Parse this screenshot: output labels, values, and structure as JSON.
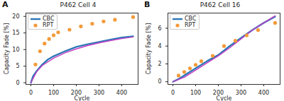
{
  "chart_data": [
    {
      "type": "line",
      "annotation": "A",
      "title": "P462 Cell 4",
      "x_label": "Cycle",
      "y_label": "Capacity Fade [%]",
      "xlim": [
        -22,
        472
      ],
      "xticks": [
        0,
        100,
        200,
        300,
        400
      ],
      "ylim": [
        -0.5,
        21
      ],
      "yticks": [
        0,
        5,
        10,
        15,
        20
      ],
      "grid": false,
      "legend": "upper left",
      "series": [
        {
          "name": "CBC",
          "type": "line",
          "color": "#2e78b7",
          "x": [
            0,
            10,
            25,
            50,
            75,
            100,
            150,
            200,
            250,
            300,
            350,
            400,
            450
          ],
          "values": [
            0,
            2,
            3.5,
            5.5,
            7,
            8,
            9.5,
            10.8,
            11.6,
            12.3,
            13,
            13.6,
            14
          ]
        },
        {
          "type": "line",
          "color": "#c43fc4",
          "x": [
            0,
            25,
            50,
            100,
            150,
            200,
            250,
            300,
            350,
            400,
            450
          ],
          "values": [
            0,
            3.3,
            5.2,
            7.4,
            9,
            10.2,
            11.2,
            12,
            12.7,
            13.3,
            13.8
          ]
        },
        {
          "name": "RPT",
          "type": "scatter",
          "marker": "circle",
          "color": "#f39a3a",
          "x": [
            20,
            40,
            60,
            80,
            100,
            120,
            170,
            220,
            270,
            320,
            370,
            450
          ],
          "values": [
            5.5,
            9.5,
            11.8,
            13.2,
            14.3,
            15.2,
            16,
            17,
            17.8,
            18.5,
            19,
            19.8
          ]
        }
      ]
    },
    {
      "type": "line",
      "annotation": "B",
      "title": "P462 Cell 16",
      "x_label": "Cycle",
      "y_label": "Capacity Fade [%]",
      "xlim": [
        -22,
        472
      ],
      "xticks": [
        0,
        100,
        200,
        300,
        400
      ],
      "ylim": [
        -0.3,
        7.7
      ],
      "yticks": [
        0,
        2,
        4,
        6
      ],
      "grid": false,
      "legend": "upper left",
      "series": [
        {
          "name": "CBC",
          "type": "line",
          "color": "#2e78b7",
          "x": [
            0,
            25,
            50,
            100,
            150,
            200,
            250,
            300,
            350,
            400,
            450
          ],
          "values": [
            0,
            0.3,
            0.7,
            1.5,
            2.3,
            3,
            4,
            4.9,
            5.8,
            6.6,
            7.3
          ]
        },
        {
          "type": "line",
          "color": "#c43fc4",
          "x": [
            0,
            50,
            100,
            150,
            200,
            250,
            300,
            350,
            400,
            450
          ],
          "values": [
            0,
            0.5,
            1.3,
            2.1,
            2.9,
            3.8,
            4.8,
            5.8,
            6.6,
            7.4
          ]
        },
        {
          "name": "RPT",
          "type": "scatter",
          "marker": "circle",
          "color": "#f39a3a",
          "x": [
            25,
            50,
            75,
            100,
            125,
            175,
            225,
            275,
            325,
            375,
            450
          ],
          "values": [
            0.7,
            1.1,
            1.5,
            1.9,
            2.3,
            2.9,
            4,
            4.6,
            5.2,
            5.8,
            6.6
          ]
        }
      ]
    }
  ]
}
